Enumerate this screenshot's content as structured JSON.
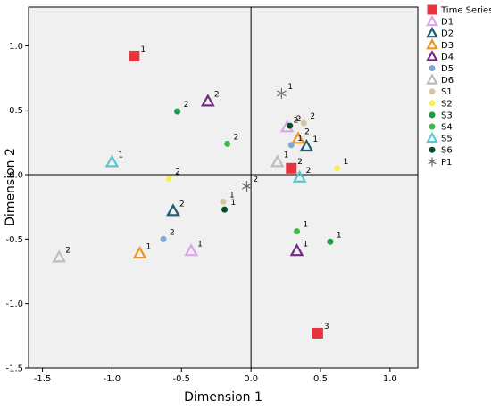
{
  "chart_data": {
    "type": "scatter",
    "xlabel": "Dimension 1",
    "ylabel": "Dimension 2",
    "xlim": [
      -1.6,
      1.2
    ],
    "ylim": [
      -1.5,
      1.3
    ],
    "xticks": [
      "-1.5",
      "-1.0",
      "-0.5",
      "0.0",
      "0.5",
      "1.0"
    ],
    "xtick_values": [
      -1.5,
      -1.0,
      -0.5,
      0.0,
      0.5,
      1.0
    ],
    "yticks": [
      "1.0",
      "0.5",
      "0.0",
      "-0.5",
      "-1.0",
      "-1.5"
    ],
    "ytick_values": [
      1.0,
      0.5,
      0.0,
      -0.5,
      -1.0,
      -1.5
    ],
    "reference_lines": {
      "x": 0,
      "y": 0
    },
    "legend_position": "right",
    "series": [
      {
        "name": "Time Series",
        "marker": "square",
        "color": "#e8333f",
        "points": [
          {
            "x": -0.84,
            "y": 0.92,
            "label": "1"
          },
          {
            "x": 0.29,
            "y": 0.05,
            "label": "2"
          },
          {
            "x": 0.48,
            "y": -1.23,
            "label": "3"
          }
        ]
      },
      {
        "name": "D1",
        "marker": "triangle-open",
        "color": "#d9a7e8",
        "points": [
          {
            "x": -0.43,
            "y": -0.59,
            "label": "1"
          },
          {
            "x": 0.26,
            "y": 0.37,
            "label": "2"
          }
        ]
      },
      {
        "name": "D2",
        "marker": "triangle-open",
        "color": "#1f5b73",
        "points": [
          {
            "x": 0.4,
            "y": 0.22,
            "label": "1"
          },
          {
            "x": -0.56,
            "y": -0.28,
            "label": "2"
          }
        ]
      },
      {
        "name": "D3",
        "marker": "triangle-open",
        "color": "#ef9520",
        "points": [
          {
            "x": -0.8,
            "y": -0.61,
            "label": "1"
          },
          {
            "x": 0.34,
            "y": 0.28,
            "label": "2"
          }
        ]
      },
      {
        "name": "D4",
        "marker": "triangle-open",
        "color": "#732a80",
        "points": [
          {
            "x": 0.33,
            "y": -0.59,
            "label": "1"
          },
          {
            "x": -0.31,
            "y": 0.57,
            "label": "2"
          }
        ]
      },
      {
        "name": "D5",
        "marker": "circle",
        "color": "#7fa8d9",
        "points": [
          {
            "x": 0.29,
            "y": 0.23,
            "label": "1"
          },
          {
            "x": -0.63,
            "y": -0.5,
            "label": "2"
          }
        ]
      },
      {
        "name": "D6",
        "marker": "triangle-open",
        "color": "#bdbdbd",
        "points": [
          {
            "x": 0.19,
            "y": 0.1,
            "label": "1"
          },
          {
            "x": -1.38,
            "y": -0.64,
            "label": "2"
          }
        ]
      },
      {
        "name": "S1",
        "marker": "circle",
        "color": "#d4c7a0",
        "points": [
          {
            "x": -0.2,
            "y": -0.21,
            "label": "1"
          },
          {
            "x": 0.38,
            "y": 0.4,
            "label": "2"
          }
        ]
      },
      {
        "name": "S2",
        "marker": "circle",
        "color": "#f7ee55",
        "points": [
          {
            "x": 0.62,
            "y": 0.05,
            "label": "1"
          },
          {
            "x": -0.59,
            "y": -0.03,
            "label": "2"
          }
        ]
      },
      {
        "name": "S3",
        "marker": "circle",
        "color": "#1f9a4c",
        "points": [
          {
            "x": 0.57,
            "y": -0.52,
            "label": "1"
          },
          {
            "x": -0.53,
            "y": 0.49,
            "label": "2"
          }
        ]
      },
      {
        "name": "S4",
        "marker": "circle",
        "color": "#3dbb4a",
        "points": [
          {
            "x": 0.33,
            "y": -0.44,
            "label": "1"
          },
          {
            "x": -0.17,
            "y": 0.24,
            "label": "2"
          }
        ]
      },
      {
        "name": "S5",
        "marker": "triangle-open",
        "color": "#5bc7cc",
        "points": [
          {
            "x": -1.0,
            "y": 0.1,
            "label": "1"
          },
          {
            "x": 0.35,
            "y": -0.02,
            "label": "2"
          }
        ]
      },
      {
        "name": "S6",
        "marker": "circle",
        "color": "#0a4d28",
        "points": [
          {
            "x": -0.19,
            "y": -0.27,
            "label": "1"
          },
          {
            "x": 0.28,
            "y": 0.38,
            "label": "2"
          }
        ]
      },
      {
        "name": "P1",
        "marker": "star",
        "color": "#6b6b6b",
        "points": [
          {
            "x": 0.22,
            "y": 0.63,
            "label": "1"
          },
          {
            "x": -0.03,
            "y": -0.09,
            "label": "2"
          }
        ]
      }
    ]
  }
}
